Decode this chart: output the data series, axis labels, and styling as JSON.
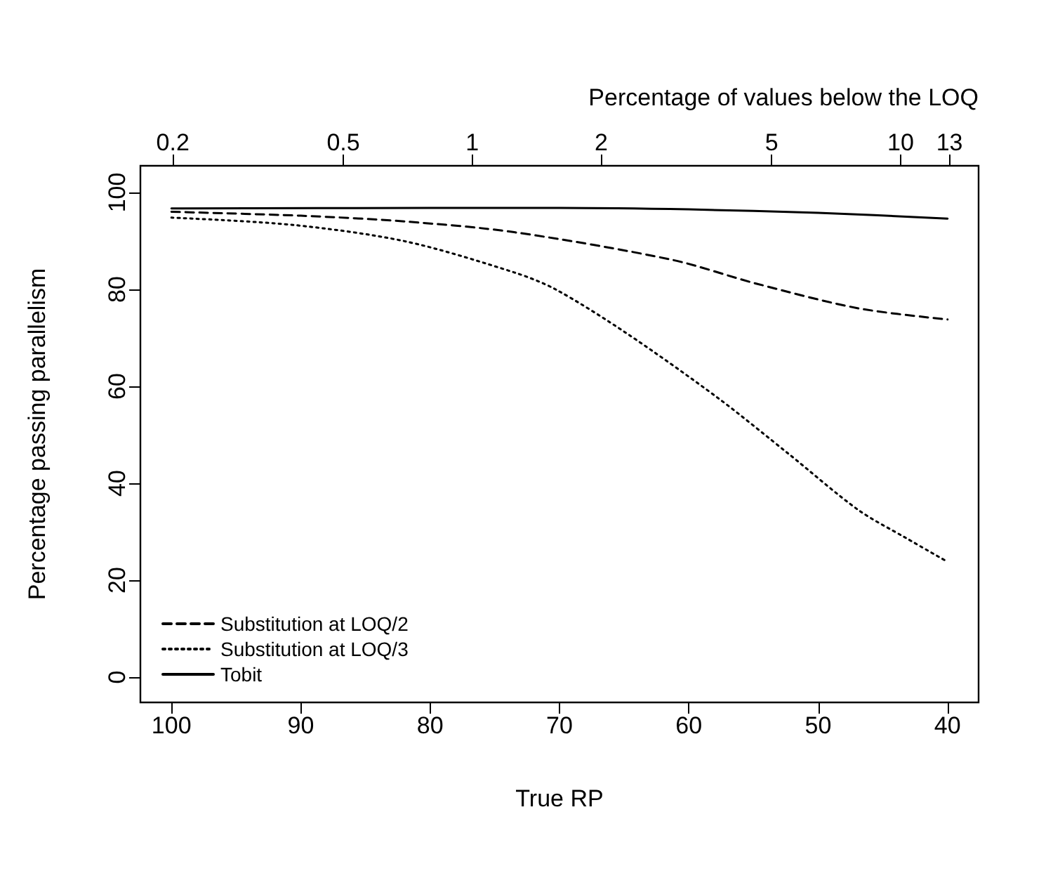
{
  "chart_data": {
    "type": "line",
    "xlabel": "True RP",
    "ylabel": "Percentage passing parallelism",
    "x2label": "Percentage of values below the LOQ",
    "xlim": [
      102.4,
      37.6
    ],
    "xticks": [
      100,
      90,
      80,
      70,
      60,
      50,
      40
    ],
    "x2lim": [
      0.168,
      15.2
    ],
    "x2ticks": [
      0.2,
      0.5,
      1,
      2,
      5,
      10,
      13
    ],
    "log": "x2",
    "ylim": [
      -5.2,
      105.5
    ],
    "yticks": [
      0,
      20,
      40,
      60,
      80,
      100
    ],
    "grid": false,
    "legend": "bottom left",
    "marker": "none",
    "series": [
      {
        "name": "Substitution at LOQ/2",
        "color": "#000000",
        "line_style": "dashed",
        "x": [
          100,
          90,
          81.9,
          73.5,
          61.3,
          54.8,
          46.9,
          40
        ],
        "values": [
          96.0,
          95.2,
          94.0,
          91.8,
          86.1,
          81.2,
          76.1,
          73.8
        ]
      },
      {
        "name": "Substitution at LOQ/3",
        "color": "#000000",
        "line_style": "dotted",
        "x": [
          100,
          90.6,
          81.9,
          73.5,
          70.3,
          64.9,
          57.7,
          52.3,
          46.9,
          43.2,
          40
        ],
        "values": [
          94.8,
          93.3,
          89.9,
          83.5,
          80,
          71.1,
          57.5,
          46.1,
          34.5,
          28.7,
          23.8
        ]
      },
      {
        "name": "Tobit",
        "color": "#000000",
        "line_style": "solid",
        "x": [
          100,
          80,
          70,
          60,
          50,
          40
        ],
        "values": [
          96.7,
          96.8,
          96.8,
          96.5,
          95.8,
          94.6
        ]
      }
    ]
  }
}
